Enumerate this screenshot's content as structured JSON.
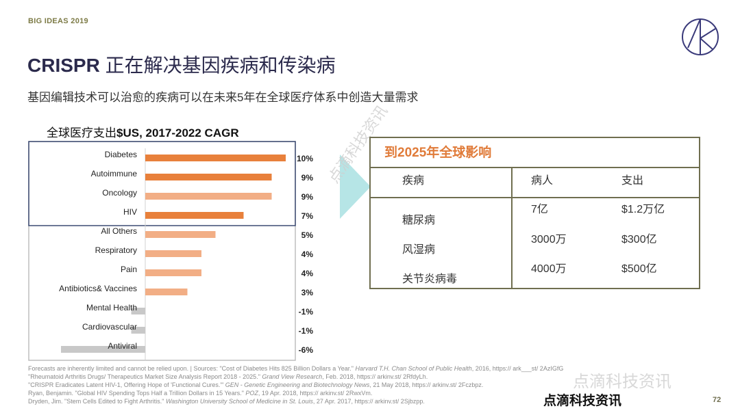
{
  "header": {
    "series_label": "BIG IDEAS 2019",
    "title_en": "CRISPR",
    "title_cn": " 正在解决基因疾病和传染病",
    "subtitle": "基因编辑技术可以治愈的疾病可以在未来5年在全球医疗体系中创造大量需求",
    "logo": "ark-invest-logo"
  },
  "chart_data": {
    "type": "bar",
    "orientation": "horizontal",
    "title_cn": "全球医疗支出",
    "title_en": "$US, 2017-2022 CAGR",
    "categories": [
      "Diabetes",
      "Autoimmune",
      "Oncology",
      "HIV",
      "All Others",
      "Respiratory",
      "Pain",
      "Antibiotics& Vaccines",
      "Mental Health",
      "Cardiovascular",
      "Antiviral"
    ],
    "values": [
      10,
      9,
      9,
      7,
      5,
      4,
      4,
      3,
      -1,
      -1,
      -6
    ],
    "data_labels": [
      "10%",
      "9%",
      "9%",
      "7%",
      "5%",
      "4%",
      "4%",
      "3%",
      "-1%",
      "-1%",
      "-6%"
    ],
    "unit": "%",
    "highlighted_group": [
      "Diabetes",
      "Autoimmune",
      "Oncology",
      "HIV"
    ],
    "bar_colors": [
      "#e8803b",
      "#e8803b",
      "#f2ae85",
      "#e8803b",
      "#f2ae85",
      "#f2ae85",
      "#f2ae85",
      "#f2ae85",
      "#c8c8c8",
      "#c8c8c8",
      "#c8c8c8"
    ],
    "xlim": [
      -6,
      10
    ],
    "grid": false,
    "legend": "none"
  },
  "impact_table": {
    "title": "到2025年全球影响",
    "columns": [
      "疾病",
      "病人",
      "支出"
    ],
    "rows": [
      {
        "disease": "糖尿病",
        "patients": "7亿",
        "spending": "$1.2万亿"
      },
      {
        "disease": "风湿病",
        "patients": "3000万",
        "spending": "$300亿"
      },
      {
        "disease": "关节炎病毒",
        "patients": "4000万",
        "spending": "$500亿"
      }
    ]
  },
  "watermark": "点滴科技资讯",
  "footnotes": [
    [
      "Forecasts are inherently limited and cannot be relied upon. |  Sources: \"Cost of Diabetes Hits 825 Billion Dollars a Year.\" ",
      "Harvard T.H. Chan School of Public Health",
      ", 2016, https:// ark___st/ 2AzIGfG"
    ],
    [
      "\"Rheumatoid Arthritis Drugs/ Therapeutics Market Size Analysis Report 2018 - 2025.\" ",
      "Grand View Research",
      ", Feb. 2018, https:// arkinv.st/ 2RfdyLh."
    ],
    [
      "\"CRISPR Eradicates Latent HIV-1, Offering Hope of 'Functional Cures.'\" ",
      "GEN - Genetic Engineering and Biotechnology News",
      ", 21 May 2018, https:// arkinv.st/ 2Fczbpz."
    ],
    [
      "Ryan, Benjamin. \"Global HIV Spending Tops Half a Trillion Dollars in 15 Years.\" ",
      "POZ",
      ", 19 Apr. 2018, https:// arkinv.st/ 2RwxVm."
    ],
    [
      "Dryden, Jim. \"Stem Cells Edited to Fight Arthritis.\" ",
      "Washington University School of Medicine in St. Louis",
      ", 27 Apr. 2017, https:// arkinv.st/ 2Sjbzpp."
    ]
  ],
  "footer": {
    "wechat_mark": "点滴科技资讯",
    "brand": "点滴科技资讯",
    "page_number": "72"
  },
  "colors": {
    "primary_navy": "#2b2a4c",
    "accent_orange": "#e8803b",
    "light_orange": "#f2ae85",
    "negative_gray": "#c8c8c8",
    "olive": "#6f6e4f",
    "arrow_teal": "#a9e0e2"
  }
}
